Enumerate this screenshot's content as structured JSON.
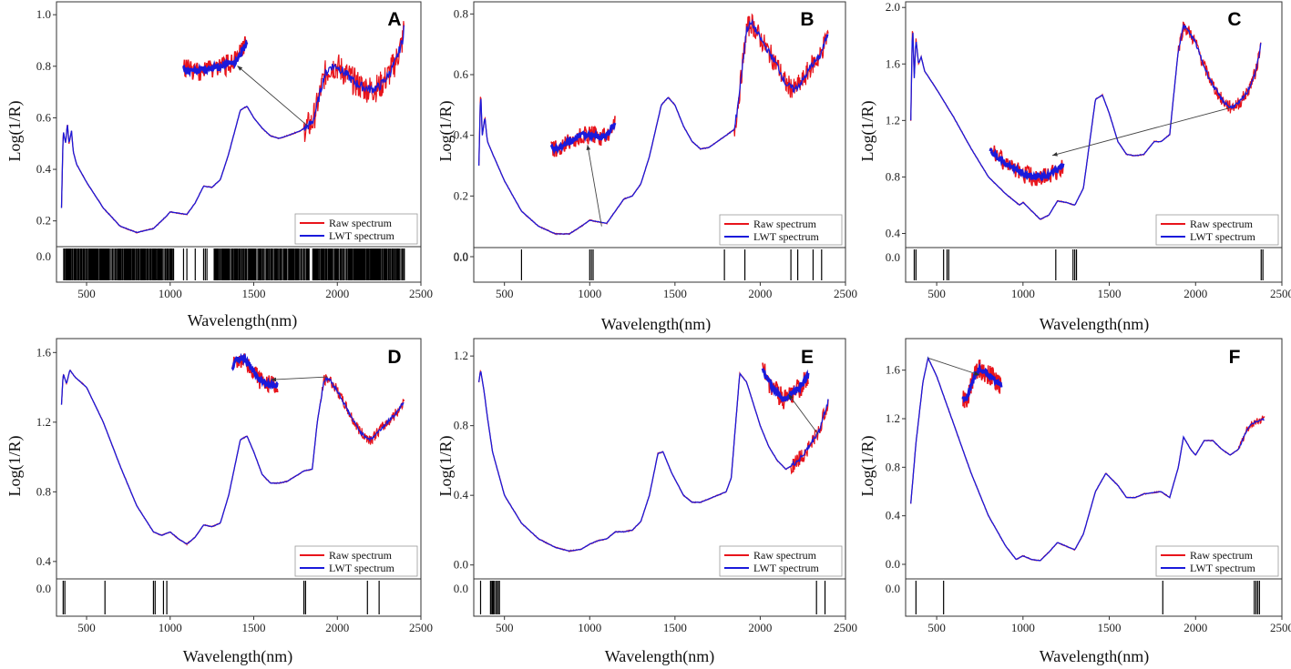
{
  "figure": {
    "xlabel": "Wavelength(nm)",
    "ylabel": "Log(1/R)",
    "legend": {
      "raw": "Raw spectrum",
      "lwt": "LWT spectrum",
      "raw_color": "#e8141b",
      "lwt_color": "#1a1adb",
      "location": "bottom-right"
    },
    "xticks": [
      500,
      1000,
      1500,
      2000,
      2500
    ],
    "xlim": [
      320,
      2500
    ]
  },
  "chart_data": [
    {
      "type": "line",
      "panel": "A",
      "xlabel": "Wavelength(nm)",
      "ylabel": "Log(1/R)",
      "ylim": [
        0.1,
        1.05
      ],
      "yticks": [
        0.2,
        0.4,
        0.6,
        0.8,
        1.0
      ],
      "tick_decimals": 1,
      "series": [
        {
          "name": "Raw spectrum"
        },
        {
          "name": "LWT spectrum"
        }
      ],
      "curve": [
        [
          350,
          0.25
        ],
        [
          360,
          0.55
        ],
        [
          375,
          0.5
        ],
        [
          385,
          0.58
        ],
        [
          395,
          0.5
        ],
        [
          410,
          0.55
        ],
        [
          420,
          0.47
        ],
        [
          440,
          0.42
        ],
        [
          500,
          0.35
        ],
        [
          600,
          0.25
        ],
        [
          700,
          0.18
        ],
        [
          800,
          0.155
        ],
        [
          900,
          0.17
        ],
        [
          980,
          0.22
        ],
        [
          1000,
          0.235
        ],
        [
          1050,
          0.23
        ],
        [
          1100,
          0.225
        ],
        [
          1150,
          0.27
        ],
        [
          1200,
          0.335
        ],
        [
          1250,
          0.33
        ],
        [
          1300,
          0.36
        ],
        [
          1350,
          0.46
        ],
        [
          1420,
          0.63
        ],
        [
          1460,
          0.645
        ],
        [
          1500,
          0.6
        ],
        [
          1550,
          0.56
        ],
        [
          1600,
          0.53
        ],
        [
          1650,
          0.52
        ],
        [
          1700,
          0.53
        ],
        [
          1780,
          0.55
        ],
        [
          1850,
          0.58
        ],
        [
          1880,
          0.65
        ],
        [
          1920,
          0.76
        ],
        [
          1960,
          0.8
        ],
        [
          2000,
          0.8
        ],
        [
          2050,
          0.77
        ],
        [
          2100,
          0.74
        ],
        [
          2150,
          0.72
        ],
        [
          2200,
          0.71
        ],
        [
          2250,
          0.72
        ],
        [
          2300,
          0.76
        ],
        [
          2350,
          0.82
        ],
        [
          2390,
          0.9
        ],
        [
          2400,
          0.97
        ]
      ],
      "noise": [
        [
          1800,
          2400,
          0.07
        ]
      ],
      "selected_wavelengths": {
        "dense": [
          [
            360,
            1020
          ],
          [
            1260,
            1830
          ],
          [
            1850,
            2400
          ]
        ],
        "lines": [
          1080,
          1100,
          1150,
          1200,
          1210,
          1220,
          1290,
          1300
        ]
      },
      "inset": {
        "x": [
          1600,
          1900
        ],
        "anchor": [
          1820,
          0.57
        ]
      }
    },
    {
      "type": "line",
      "panel": "B",
      "xlabel": "Wavelength(nm)",
      "ylabel": "Log(1/R)",
      "ylim": [
        0.03,
        0.84
      ],
      "yticks": [
        0.0,
        0.2,
        0.4,
        0.6,
        0.8
      ],
      "tick_decimals": 1,
      "series": [
        {
          "name": "Raw spectrum"
        },
        {
          "name": "LWT spectrum"
        }
      ],
      "curve": [
        [
          350,
          0.3
        ],
        [
          360,
          0.55
        ],
        [
          370,
          0.4
        ],
        [
          385,
          0.46
        ],
        [
          400,
          0.38
        ],
        [
          430,
          0.34
        ],
        [
          500,
          0.25
        ],
        [
          600,
          0.15
        ],
        [
          700,
          0.1
        ],
        [
          800,
          0.075
        ],
        [
          880,
          0.075
        ],
        [
          950,
          0.1
        ],
        [
          1000,
          0.12
        ],
        [
          1050,
          0.115
        ],
        [
          1100,
          0.11
        ],
        [
          1150,
          0.15
        ],
        [
          1200,
          0.19
        ],
        [
          1250,
          0.2
        ],
        [
          1300,
          0.24
        ],
        [
          1350,
          0.33
        ],
        [
          1420,
          0.5
        ],
        [
          1460,
          0.525
        ],
        [
          1500,
          0.5
        ],
        [
          1550,
          0.43
        ],
        [
          1600,
          0.38
        ],
        [
          1650,
          0.355
        ],
        [
          1700,
          0.36
        ],
        [
          1800,
          0.4
        ],
        [
          1850,
          0.42
        ],
        [
          1880,
          0.55
        ],
        [
          1920,
          0.75
        ],
        [
          1950,
          0.77
        ],
        [
          2000,
          0.72
        ],
        [
          2100,
          0.63
        ],
        [
          2150,
          0.57
        ],
        [
          2200,
          0.55
        ],
        [
          2250,
          0.58
        ],
        [
          2300,
          0.63
        ],
        [
          2350,
          0.66
        ],
        [
          2400,
          0.74
        ]
      ],
      "noise": [
        [
          1850,
          2400,
          0.045
        ]
      ],
      "selected_wavelengths": {
        "dense": [],
        "lines": [
          600,
          1000,
          1010,
          1020,
          1790,
          1910,
          2180,
          2220,
          2310,
          2360
        ]
      },
      "inset": {
        "x": [
          850,
          1150
        ],
        "anchor": [
          1070,
          0.1
        ]
      }
    },
    {
      "type": "line",
      "panel": "C",
      "xlabel": "Wavelength(nm)",
      "ylabel": "Log(1/R)",
      "ylim": [
        0.3,
        2.04
      ],
      "yticks": [
        0.4,
        0.8,
        1.2,
        1.6,
        2.0
      ],
      "tick_decimals": 1,
      "series": [
        {
          "name": "Raw spectrum"
        },
        {
          "name": "LWT spectrum"
        }
      ],
      "curve": [
        [
          350,
          1.2
        ],
        [
          360,
          1.9
        ],
        [
          370,
          1.5
        ],
        [
          380,
          1.78
        ],
        [
          395,
          1.6
        ],
        [
          410,
          1.65
        ],
        [
          430,
          1.55
        ],
        [
          500,
          1.42
        ],
        [
          600,
          1.22
        ],
        [
          700,
          1.0
        ],
        [
          800,
          0.8
        ],
        [
          900,
          0.68
        ],
        [
          980,
          0.6
        ],
        [
          1000,
          0.62
        ],
        [
          1050,
          0.56
        ],
        [
          1100,
          0.5
        ],
        [
          1150,
          0.53
        ],
        [
          1200,
          0.63
        ],
        [
          1250,
          0.62
        ],
        [
          1300,
          0.6
        ],
        [
          1350,
          0.72
        ],
        [
          1420,
          1.35
        ],
        [
          1460,
          1.38
        ],
        [
          1500,
          1.25
        ],
        [
          1550,
          1.05
        ],
        [
          1600,
          0.96
        ],
        [
          1650,
          0.95
        ],
        [
          1700,
          0.96
        ],
        [
          1760,
          1.05
        ],
        [
          1800,
          1.05
        ],
        [
          1850,
          1.1
        ],
        [
          1900,
          1.7
        ],
        [
          1930,
          1.87
        ],
        [
          1960,
          1.83
        ],
        [
          2000,
          1.75
        ],
        [
          2050,
          1.58
        ],
        [
          2100,
          1.45
        ],
        [
          2150,
          1.35
        ],
        [
          2200,
          1.29
        ],
        [
          2250,
          1.32
        ],
        [
          2300,
          1.4
        ],
        [
          2350,
          1.55
        ],
        [
          2380,
          1.75
        ]
      ],
      "noise": [
        [
          1900,
          2400,
          0.06
        ]
      ],
      "selected_wavelengths": {
        "dense": [],
        "lines": [
          370,
          380,
          540,
          560,
          570,
          1190,
          1290,
          1300,
          1310,
          2380,
          2390
        ]
      },
      "inset": {
        "x": [
          2000,
          2330
        ],
        "anchor": [
          2200,
          1.29
        ]
      }
    },
    {
      "type": "line",
      "panel": "D",
      "xlabel": "Wavelength(nm)",
      "ylabel": "Log(1/R)",
      "ylim": [
        0.3,
        1.68
      ],
      "yticks": [
        0.4,
        0.8,
        1.2,
        1.6
      ],
      "tick_decimals": 1,
      "series": [
        {
          "name": "Raw spectrum"
        },
        {
          "name": "LWT spectrum"
        }
      ],
      "curve": [
        [
          350,
          1.3
        ],
        [
          360,
          1.48
        ],
        [
          380,
          1.42
        ],
        [
          400,
          1.5
        ],
        [
          430,
          1.46
        ],
        [
          500,
          1.4
        ],
        [
          600,
          1.2
        ],
        [
          700,
          0.95
        ],
        [
          800,
          0.72
        ],
        [
          900,
          0.57
        ],
        [
          950,
          0.55
        ],
        [
          1000,
          0.57
        ],
        [
          1050,
          0.53
        ],
        [
          1100,
          0.5
        ],
        [
          1150,
          0.54
        ],
        [
          1200,
          0.61
        ],
        [
          1250,
          0.6
        ],
        [
          1300,
          0.62
        ],
        [
          1350,
          0.78
        ],
        [
          1420,
          1.1
        ],
        [
          1460,
          1.12
        ],
        [
          1500,
          1.03
        ],
        [
          1550,
          0.9
        ],
        [
          1600,
          0.85
        ],
        [
          1650,
          0.85
        ],
        [
          1700,
          0.86
        ],
        [
          1800,
          0.92
        ],
        [
          1850,
          0.93
        ],
        [
          1880,
          1.2
        ],
        [
          1920,
          1.44
        ],
        [
          1950,
          1.45
        ],
        [
          2000,
          1.38
        ],
        [
          2100,
          1.2
        ],
        [
          2150,
          1.13
        ],
        [
          2200,
          1.1
        ],
        [
          2250,
          1.15
        ],
        [
          2300,
          1.2
        ],
        [
          2350,
          1.25
        ],
        [
          2400,
          1.32
        ]
      ],
      "noise": [
        [
          1900,
          2400,
          0.04
        ]
      ],
      "selected_wavelengths": {
        "dense": [],
        "lines": [
          360,
          370,
          610,
          900,
          910,
          960,
          980,
          1800,
          1810,
          2180,
          2250
        ]
      },
      "inset": {
        "x": [
          1400,
          1650
        ],
        "anchor": [
          1940,
          1.46
        ]
      }
    },
    {
      "type": "line",
      "panel": "E",
      "xlabel": "Wavelength(nm)",
      "ylabel": "Log(1/R)",
      "ylim": [
        -0.08,
        1.3
      ],
      "yticks": [
        0.0,
        0.4,
        0.8,
        1.2
      ],
      "tick_decimals": 1,
      "series": [
        {
          "name": "Raw spectrum"
        },
        {
          "name": "LWT spectrum"
        }
      ],
      "curve": [
        [
          350,
          1.05
        ],
        [
          360,
          1.12
        ],
        [
          380,
          1.0
        ],
        [
          400,
          0.85
        ],
        [
          430,
          0.65
        ],
        [
          500,
          0.4
        ],
        [
          600,
          0.24
        ],
        [
          700,
          0.15
        ],
        [
          800,
          0.1
        ],
        [
          880,
          0.08
        ],
        [
          950,
          0.09
        ],
        [
          1000,
          0.12
        ],
        [
          1050,
          0.14
        ],
        [
          1100,
          0.15
        ],
        [
          1150,
          0.19
        ],
        [
          1200,
          0.19
        ],
        [
          1250,
          0.2
        ],
        [
          1300,
          0.25
        ],
        [
          1350,
          0.4
        ],
        [
          1400,
          0.64
        ],
        [
          1430,
          0.65
        ],
        [
          1480,
          0.53
        ],
        [
          1550,
          0.4
        ],
        [
          1600,
          0.36
        ],
        [
          1650,
          0.36
        ],
        [
          1700,
          0.38
        ],
        [
          1800,
          0.42
        ],
        [
          1830,
          0.5
        ],
        [
          1880,
          1.1
        ],
        [
          1920,
          1.05
        ],
        [
          2000,
          0.8
        ],
        [
          2050,
          0.68
        ],
        [
          2100,
          0.6
        ],
        [
          2150,
          0.55
        ],
        [
          2200,
          0.58
        ],
        [
          2250,
          0.63
        ],
        [
          2300,
          0.7
        ],
        [
          2350,
          0.78
        ],
        [
          2400,
          0.95
        ]
      ],
      "noise": [
        [
          2180,
          2400,
          0.06
        ]
      ],
      "selected_wavelengths": {
        "dense": [
          [
            415,
            465
          ]
        ],
        "lines": [
          360,
          2330,
          2380
        ]
      },
      "inset": {
        "x": [
          2040,
          2280
        ],
        "anchor": [
          2340,
          0.75
        ]
      }
    },
    {
      "type": "line",
      "panel": "F",
      "xlabel": "Wavelength(nm)",
      "ylabel": "Log(1/R)",
      "ylim": [
        -0.12,
        1.86
      ],
      "yticks": [
        0.0,
        0.4,
        0.8,
        1.2,
        1.6
      ],
      "tick_decimals": 1,
      "series": [
        {
          "name": "Raw spectrum"
        },
        {
          "name": "LWT spectrum"
        }
      ],
      "curve": [
        [
          350,
          0.5
        ],
        [
          380,
          1.0
        ],
        [
          420,
          1.5
        ],
        [
          450,
          1.7
        ],
        [
          500,
          1.55
        ],
        [
          600,
          1.15
        ],
        [
          700,
          0.75
        ],
        [
          800,
          0.4
        ],
        [
          900,
          0.15
        ],
        [
          960,
          0.04
        ],
        [
          1000,
          0.07
        ],
        [
          1050,
          0.04
        ],
        [
          1100,
          0.03
        ],
        [
          1150,
          0.1
        ],
        [
          1200,
          0.18
        ],
        [
          1250,
          0.15
        ],
        [
          1300,
          0.12
        ],
        [
          1350,
          0.25
        ],
        [
          1420,
          0.6
        ],
        [
          1480,
          0.75
        ],
        [
          1550,
          0.65
        ],
        [
          1600,
          0.55
        ],
        [
          1650,
          0.55
        ],
        [
          1700,
          0.58
        ],
        [
          1800,
          0.6
        ],
        [
          1850,
          0.55
        ],
        [
          1900,
          0.8
        ],
        [
          1930,
          1.05
        ],
        [
          1970,
          0.95
        ],
        [
          2000,
          0.9
        ],
        [
          2050,
          1.02
        ],
        [
          2100,
          1.02
        ],
        [
          2150,
          0.95
        ],
        [
          2200,
          0.9
        ],
        [
          2250,
          0.95
        ],
        [
          2300,
          1.12
        ],
        [
          2350,
          1.18
        ],
        [
          2400,
          1.2
        ]
      ],
      "noise": [
        [
          2250,
          2400,
          0.04
        ]
      ],
      "selected_wavelengths": {
        "dense": [],
        "lines": [
          380,
          540,
          1810,
          2340,
          2350,
          2360,
          2370
        ]
      },
      "inset": {
        "x": [
          320,
          620
        ],
        "anchor": [
          450,
          1.7
        ]
      }
    }
  ]
}
